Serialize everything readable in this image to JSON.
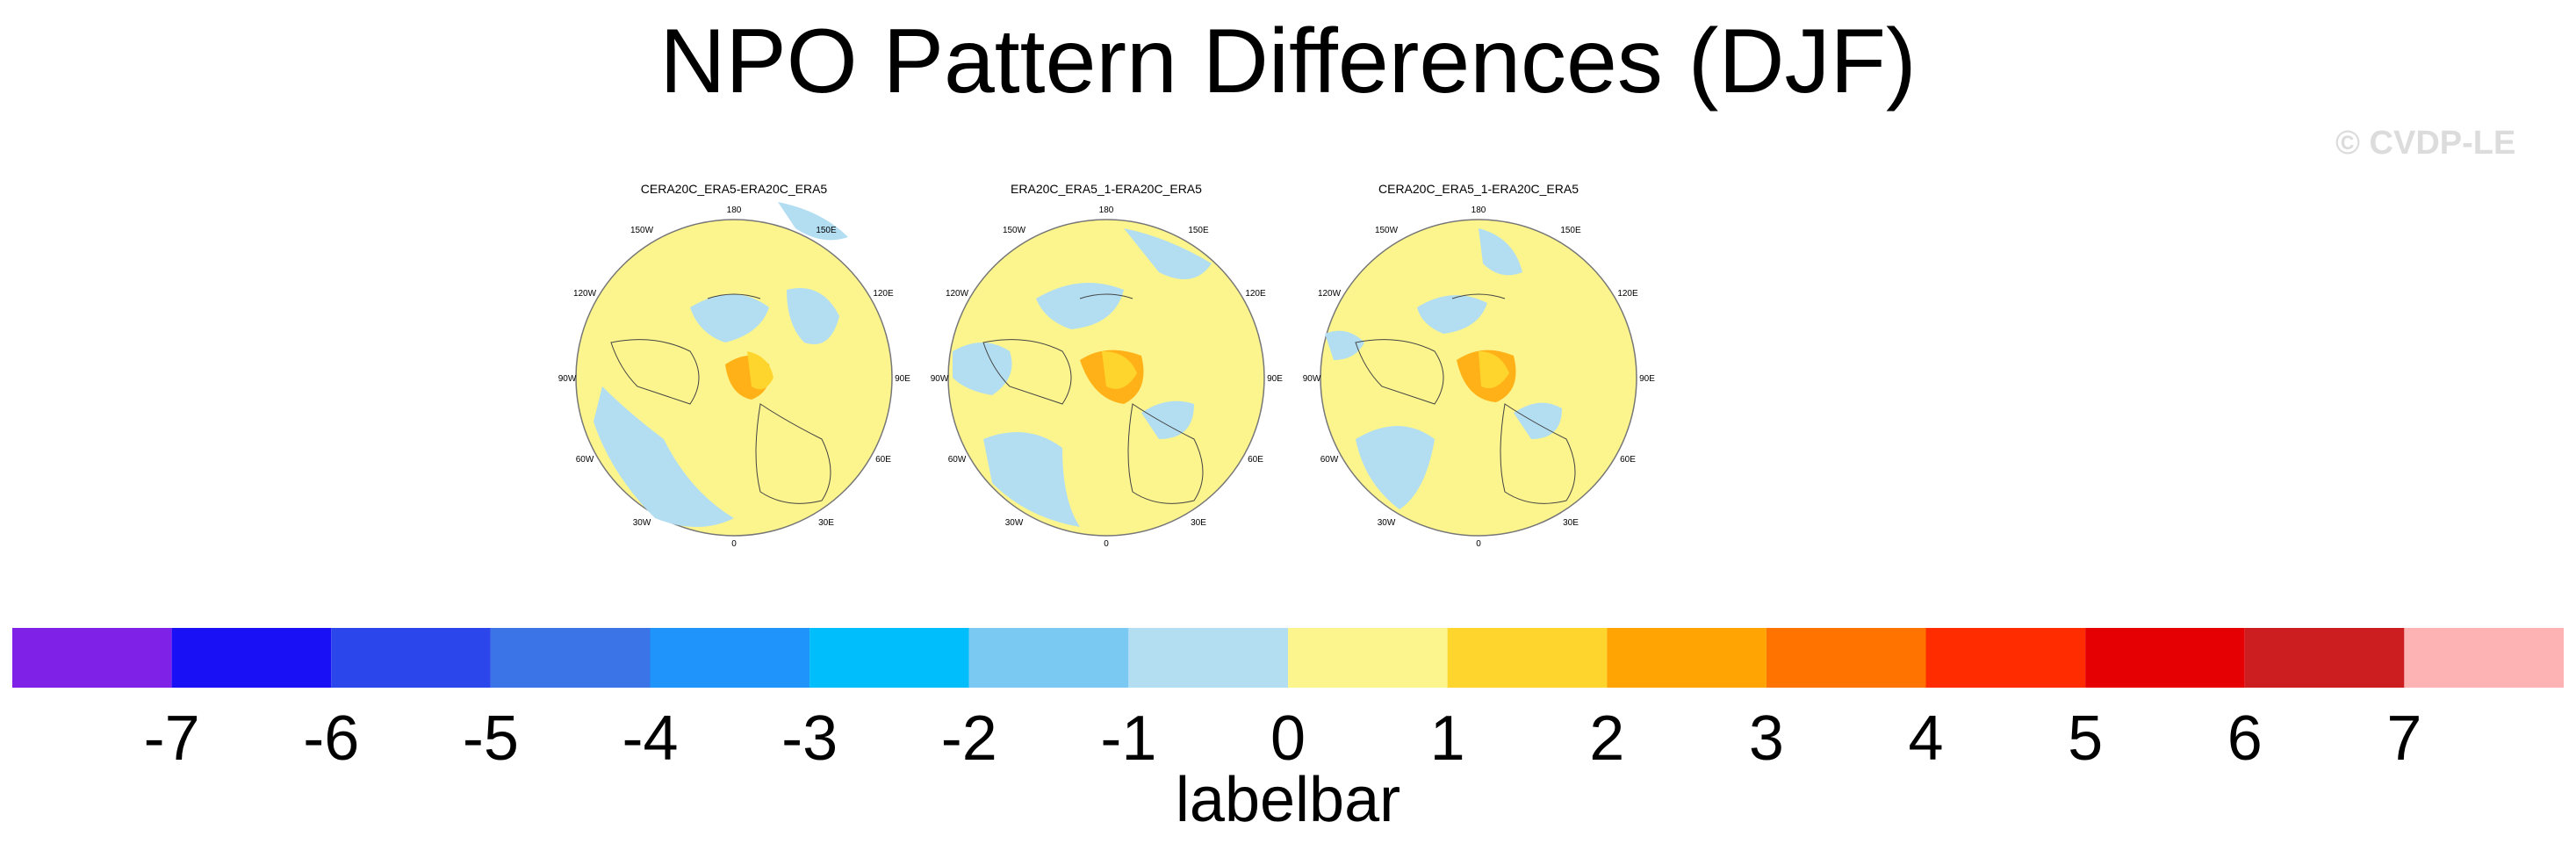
{
  "figure": {
    "title": "NPO Pattern Differences (DJF)",
    "watermark": "© CVDP-LE"
  },
  "panels": [
    {
      "title": "CERA20C_ERA5-ERA20C_ERA5"
    },
    {
      "title": "ERA20C_ERA5_1-ERA20C_ERA5"
    },
    {
      "title": "CERA20C_ERA5_1-ERA20C_ERA5"
    }
  ],
  "longitude_labels": {
    "top": "180",
    "top_left": "150W",
    "top_right": "150E",
    "upper_left": "120W",
    "upper_right": "120E",
    "left": "90W",
    "right": "90E",
    "lower_left": "60W",
    "lower_right": "60E",
    "bottom_left": "30W",
    "bottom_right": "30E",
    "bottom": "0"
  },
  "labelbar": {
    "title": "labelbar",
    "ticks": [
      "-7",
      "-6",
      "-5",
      "-4",
      "-3",
      "-2",
      "-1",
      "0",
      "1",
      "2",
      "3",
      "4",
      "5",
      "6",
      "7"
    ],
    "colors": [
      "#8021e8",
      "#1a10f5",
      "#2b47ec",
      "#3b74e6",
      "#1f94fa",
      "#00bdfb",
      "#7ac9f2",
      "#b3def2",
      "#fcf58d",
      "#fed52d",
      "#ffa402",
      "#ff7400",
      "#ff2c00",
      "#e50004",
      "#cc1d21",
      "#fdb2b3"
    ]
  },
  "colors": {
    "positive_light": "#fcf58d",
    "negative_light": "#b3def2",
    "positive_mid": "#fed52d",
    "positive_strong": "#ffa402"
  }
}
